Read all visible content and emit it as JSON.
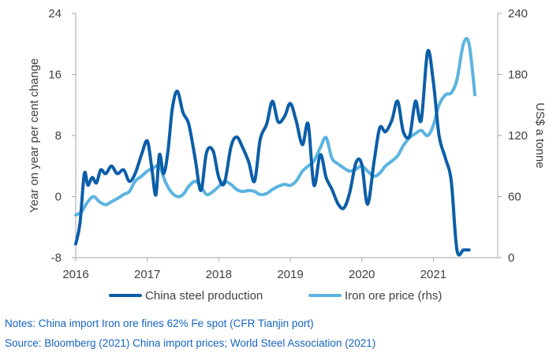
{
  "chart_data": {
    "type": "line",
    "x_unit": "year",
    "x_ticks": [
      "2016",
      "2017",
      "2018",
      "2019",
      "2020",
      "2021"
    ],
    "xlim": [
      2016,
      2021.9
    ],
    "ylabel": "Year on year per cent change",
    "ylim": [
      -8,
      24
    ],
    "yticks": [
      "-8",
      "0",
      "8",
      "16",
      "24"
    ],
    "y2label": "US$ a tonne",
    "y2lim": [
      0,
      240
    ],
    "y2ticks": [
      "0",
      "60",
      "120",
      "180",
      "240"
    ],
    "grid": false,
    "legend_position": "bottom",
    "colors": {
      "steel": "#0b5ea8",
      "ore": "#5bb4e0",
      "axis": "#a6a6a6",
      "text": "#404040",
      "notes": "#1565c0"
    },
    "series": [
      {
        "name": "China steel production",
        "axis": "left",
        "x": [
          2016.0,
          2016.06,
          2016.12,
          2016.17,
          2016.23,
          2016.29,
          2016.35,
          2016.42,
          2016.5,
          2016.58,
          2016.67,
          2016.75,
          2016.83,
          2016.92,
          2017.0,
          2017.06,
          2017.12,
          2017.17,
          2017.23,
          2017.29,
          2017.35,
          2017.42,
          2017.5,
          2017.58,
          2017.67,
          2017.75,
          2017.83,
          2017.92,
          2018.0,
          2018.08,
          2018.17,
          2018.25,
          2018.33,
          2018.42,
          2018.5,
          2018.58,
          2018.67,
          2018.75,
          2018.83,
          2018.92,
          2019.0,
          2019.08,
          2019.17,
          2019.25,
          2019.33,
          2019.42,
          2019.5,
          2019.58,
          2019.67,
          2019.75,
          2019.83,
          2019.92,
          2020.0,
          2020.08,
          2020.17,
          2020.25,
          2020.33,
          2020.42,
          2020.5,
          2020.58,
          2020.67,
          2020.75,
          2020.83,
          2020.92,
          2021.0,
          2021.08,
          2021.17,
          2021.25,
          2021.33,
          2021.42,
          2021.5
        ],
        "values": [
          -6.2,
          -3.5,
          3.0,
          1.5,
          2.5,
          1.8,
          3.5,
          3.0,
          4.0,
          3.0,
          3.5,
          2.0,
          3.0,
          5.5,
          7.3,
          4.0,
          0.2,
          5.5,
          3.0,
          6.0,
          11.5,
          13.8,
          11.0,
          9.5,
          5.0,
          0.8,
          5.8,
          6.0,
          2.5,
          1.8,
          6.5,
          7.8,
          6.5,
          4.5,
          2.0,
          7.5,
          9.5,
          12.5,
          9.8,
          10.5,
          12.2,
          10.0,
          6.8,
          9.5,
          1.5,
          5.5,
          2.5,
          1.0,
          -1.0,
          -1.5,
          0.5,
          4.5,
          4.2,
          -1.0,
          4.5,
          9.0,
          8.5,
          10.0,
          12.5,
          8.5,
          8.0,
          12.5,
          10.0,
          19.0,
          15.0,
          8.0,
          5.0,
          2.0,
          -7.0,
          -7.0,
          -7.0
        ]
      },
      {
        "name": "Iron ore price (rhs)",
        "axis": "right",
        "x": [
          2016.0,
          2016.08,
          2016.17,
          2016.25,
          2016.33,
          2016.42,
          2016.5,
          2016.58,
          2016.67,
          2016.75,
          2016.83,
          2016.92,
          2017.0,
          2017.08,
          2017.17,
          2017.25,
          2017.33,
          2017.42,
          2017.5,
          2017.58,
          2017.67,
          2017.75,
          2017.83,
          2017.92,
          2018.0,
          2018.08,
          2018.17,
          2018.25,
          2018.33,
          2018.42,
          2018.5,
          2018.58,
          2018.67,
          2018.75,
          2018.83,
          2018.92,
          2019.0,
          2019.08,
          2019.17,
          2019.25,
          2019.33,
          2019.42,
          2019.5,
          2019.58,
          2019.67,
          2019.75,
          2019.83,
          2019.92,
          2020.0,
          2020.08,
          2020.17,
          2020.25,
          2020.33,
          2020.42,
          2020.5,
          2020.58,
          2020.67,
          2020.75,
          2020.83,
          2020.92,
          2021.0,
          2021.08,
          2021.17,
          2021.25,
          2021.33,
          2021.42,
          2021.5,
          2021.58
        ],
        "values": [
          42,
          45,
          55,
          60,
          55,
          52,
          55,
          58,
          62,
          65,
          75,
          80,
          85,
          88,
          90,
          75,
          65,
          60,
          62,
          70,
          75,
          70,
          62,
          65,
          70,
          75,
          72,
          67,
          65,
          66,
          65,
          62,
          63,
          67,
          70,
          72,
          71,
          75,
          85,
          90,
          95,
          108,
          118,
          98,
          92,
          88,
          85,
          87,
          90,
          85,
          80,
          83,
          90,
          95,
          100,
          110,
          118,
          122,
          125,
          120,
          130,
          150,
          160,
          162,
          175,
          210,
          210,
          160
        ]
      }
    ],
    "notes": "Notes: China import Iron ore fines 62% Fe spot (CFR Tianjin port)",
    "source": "Source: Bloomberg (2021) China import prices; World Steel Association (2021)"
  }
}
